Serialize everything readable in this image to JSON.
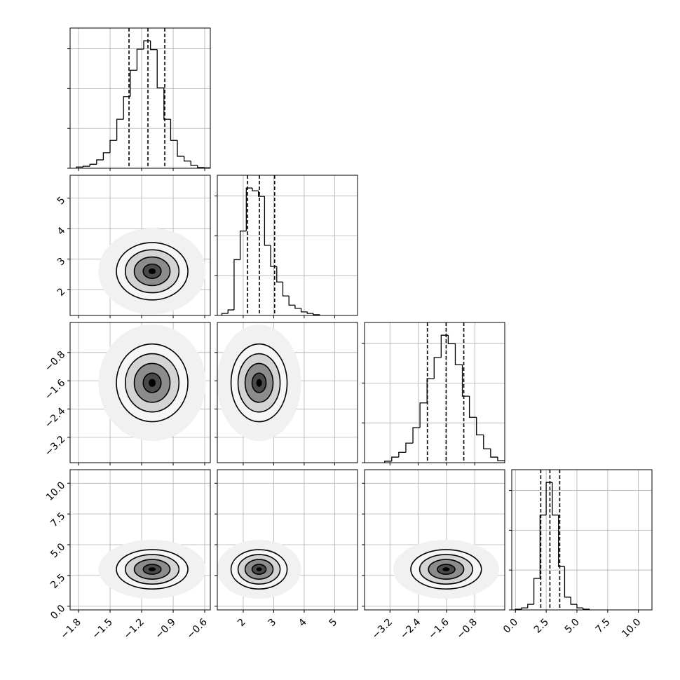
{
  "chart_data": {
    "type": "corner",
    "color": "#000000",
    "grid": true,
    "histogram_ylim": [
      0,
      1760
    ],
    "histogram_yticks": [
      0,
      500,
      1000,
      1500
    ],
    "variables": [
      {
        "lim": [
          -1.88,
          -0.547
        ],
        "ticks": [
          {
            "value": -1.8,
            "label": "−1.8"
          },
          {
            "value": -1.5,
            "label": "−1.5"
          },
          {
            "value": -1.2,
            "label": "−1.2"
          },
          {
            "value": -0.9,
            "label": "−0.9"
          },
          {
            "value": -0.6,
            "label": "−0.6"
          }
        ],
        "bins": [
          -1.82,
          -1.756,
          -1.692,
          -1.628,
          -1.564,
          -1.5,
          -1.436,
          -1.372,
          -1.308,
          -1.244,
          -1.18,
          -1.116,
          -1.052,
          -0.988,
          -0.924,
          -0.86,
          -0.796,
          -0.732,
          -0.668,
          -0.604,
          -0.54
        ],
        "counts": [
          15,
          25,
          50,
          105,
          195,
          350,
          615,
          900,
          1230,
          1495,
          1600,
          1490,
          1010,
          615,
          350,
          150,
          90,
          35,
          10,
          5
        ],
        "quantiles": [
          -1.32,
          -1.14,
          -0.98
        ]
      },
      {
        "lim": [
          1.15,
          5.75
        ],
        "ticks": [
          2,
          3,
          4,
          5
        ],
        "bins": [
          1.3,
          1.5,
          1.7,
          1.9,
          2.1,
          2.3,
          2.5,
          2.7,
          2.9,
          3.1,
          3.3,
          3.5,
          3.7,
          3.9,
          4.1,
          4.3,
          4.5
        ],
        "counts": [
          25,
          70,
          700,
          1060,
          1600,
          1565,
          1495,
          880,
          615,
          420,
          245,
          130,
          90,
          45,
          25,
          10
        ],
        "quantiles": [
          2.14,
          2.53,
          3.03
        ]
      },
      {
        "lim": [
          -3.92,
          0.05
        ],
        "ticks": [
          {
            "value": -3.2,
            "label": "−3.2"
          },
          {
            "value": -2.4,
            "label": "−2.4"
          },
          {
            "value": -1.6,
            "label": "−1.6"
          },
          {
            "value": -0.8,
            "label": "−0.8"
          }
        ],
        "bins": [
          -3.35,
          -3.15,
          -2.95,
          -2.75,
          -2.55,
          -2.35,
          -2.15,
          -1.95,
          -1.75,
          -1.55,
          -1.35,
          -1.15,
          -0.95,
          -0.75,
          -0.55,
          -0.35,
          -0.15,
          0.05
        ],
        "counts": [
          18,
          70,
          130,
          245,
          440,
          750,
          1055,
          1320,
          1600,
          1495,
          1230,
          835,
          570,
          350,
          175,
          70,
          25
        ],
        "quantiles": [
          -2.14,
          -1.61,
          -1.11
        ]
      },
      {
        "lim": [
          -0.3,
          11.1
        ],
        "ticks": [
          {
            "value": 0,
            "label": "0.0"
          },
          {
            "value": 2.5,
            "label": "2.5"
          },
          {
            "value": 5,
            "label": "5.0"
          },
          {
            "value": 7.5,
            "label": "7.5"
          },
          {
            "value": 10,
            "label": "10.0"
          }
        ],
        "bins": [
          0,
          0.5,
          1,
          1.5,
          2,
          2.5,
          3,
          3.5,
          4,
          4.5,
          5,
          5.5,
          6
        ],
        "counts": [
          9,
          25,
          70,
          395,
          1190,
          1600,
          1190,
          545,
          160,
          70,
          25,
          9
        ],
        "quantiles": [
          2.06,
          2.8,
          3.6
        ]
      }
    ],
    "panels": [
      {
        "x_var": 0,
        "y_var": 1,
        "center": [
          -1.1,
          2.6
        ],
        "spread": [
          0.17,
          0.47
        ]
      },
      {
        "x_var": 0,
        "y_var": 2,
        "center": [
          -1.1,
          -1.66
        ],
        "spread": [
          0.17,
          0.55
        ]
      },
      {
        "x_var": 1,
        "y_var": 2,
        "center": [
          2.52,
          -1.66
        ],
        "spread": [
          0.46,
          0.55
        ]
      },
      {
        "x_var": 0,
        "y_var": 3,
        "center": [
          -1.1,
          3.0
        ],
        "spread": [
          0.17,
          0.8
        ]
      },
      {
        "x_var": 1,
        "y_var": 3,
        "center": [
          2.52,
          3.0
        ],
        "spread": [
          0.46,
          0.8
        ]
      },
      {
        "x_var": 2,
        "y_var": 3,
        "center": [
          -1.61,
          3.0
        ],
        "spread": [
          0.5,
          0.8
        ]
      }
    ]
  }
}
